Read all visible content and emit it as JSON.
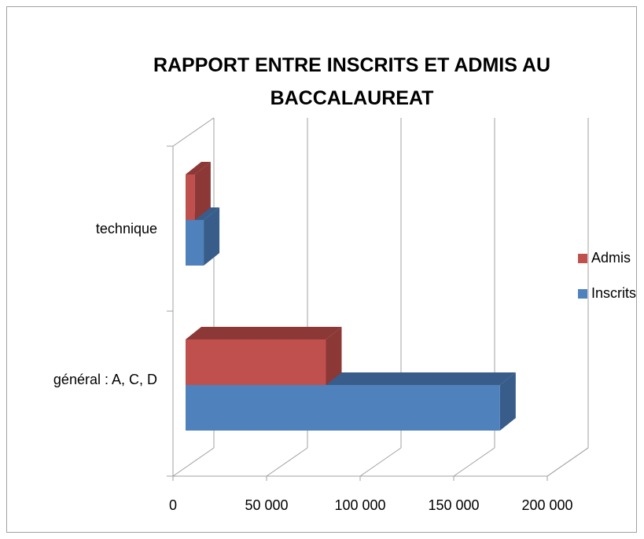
{
  "chart_data": {
    "type": "bar3d_horizontal",
    "title": "RAPPORT ENTRE INSCRITS ET ADMIS AU BACCALAUREAT",
    "categories": [
      "général : A, C, D",
      "technique"
    ],
    "series": [
      {
        "name": "Inscrits",
        "color": "#4f81bd",
        "side_color": "#385d8a",
        "values": [
          168000,
          9700
        ]
      },
      {
        "name": "Admis",
        "color": "#c0504d",
        "side_color": "#8c3836",
        "values": [
          75000,
          5000
        ]
      }
    ],
    "xlim": [
      0,
      200000
    ],
    "xticks": [
      0,
      {
        "value": 50000,
        "label": "50 000"
      },
      {
        "value": 100000,
        "label": "100 000"
      },
      {
        "value": 150000,
        "label": "150 000"
      },
      {
        "value": 200000,
        "label": "200 000"
      }
    ],
    "grid": true,
    "legend": "right"
  }
}
